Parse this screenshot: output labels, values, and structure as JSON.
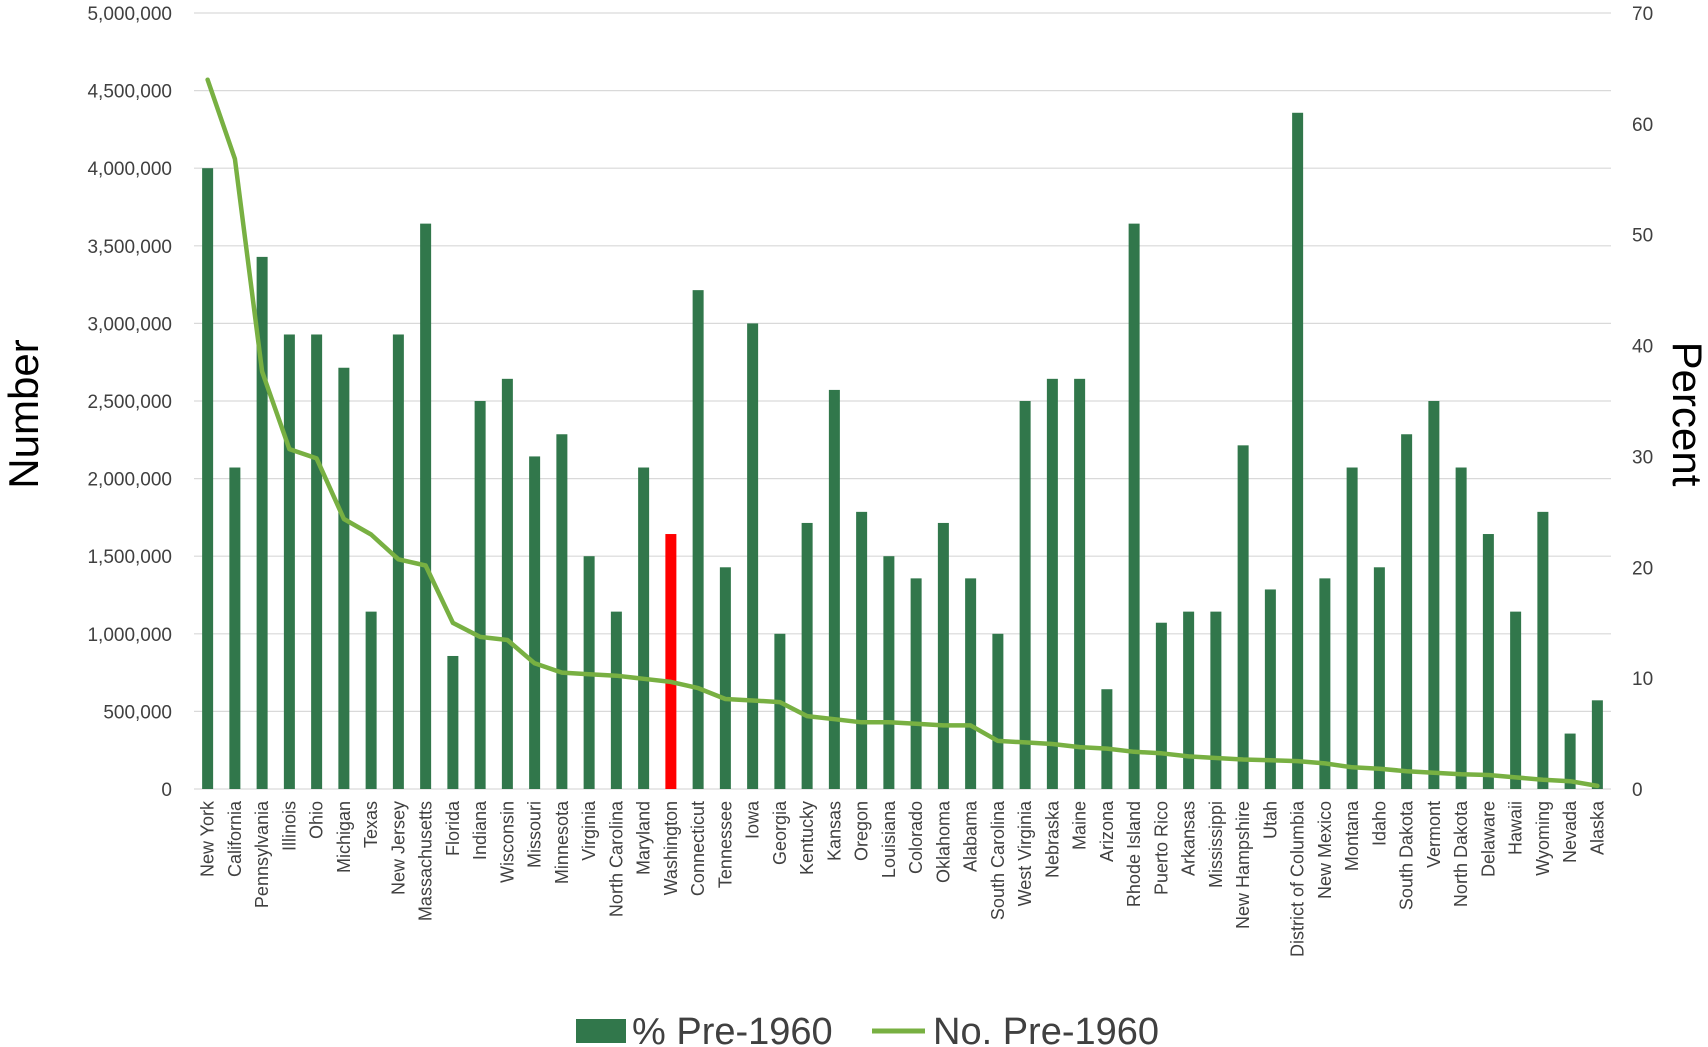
{
  "chart_data": {
    "type": "bar",
    "ylabel": "Number",
    "y2label": "Percent",
    "ylim": [
      0,
      5000000
    ],
    "y2lim": [
      0,
      70
    ],
    "yticks": [
      "0",
      "500,000",
      "1,000,000",
      "1,500,000",
      "2,000,000",
      "2,500,000",
      "3,000,000",
      "3,500,000",
      "4,000,000",
      "4,500,000",
      "5,000,000"
    ],
    "y2ticks": [
      "0",
      "10",
      "20",
      "30",
      "40",
      "50",
      "60",
      "70"
    ],
    "grid": true,
    "legend_position": "bottom",
    "categories": [
      "New York",
      "California",
      "Pennsylvania",
      "Illinois",
      "Ohio",
      "Michigan",
      "Texas",
      "New Jersey",
      "Massachusetts",
      "Florida",
      "Indiana",
      "Wisconsin",
      "Missouri",
      "Minnesota",
      "Virginia",
      "North Carolina",
      "Maryland",
      "Washington",
      "Connecticut",
      "Tennessee",
      "Iowa",
      "Georgia",
      "Kentucky",
      "Kansas",
      "Oregon",
      "Louisiana",
      "Colorado",
      "Oklahoma",
      "Alabama",
      "South Carolina",
      "West Virginia",
      "Nebraska",
      "Maine",
      "Arizona",
      "Rhode Island",
      "Puerto Rico",
      "Arkansas",
      "Mississippi",
      "New Hampshire",
      "Utah",
      "District of Columbia",
      "New Mexico",
      "Montana",
      "Idaho",
      "South Dakota",
      "Vermont",
      "North Dakota",
      "Delaware",
      "Hawaii",
      "Wyoming",
      "Nevada",
      "Alaska"
    ],
    "highlight_category": "Washington",
    "series": [
      {
        "name": "% Pre-1960",
        "kind": "bar",
        "axis": "right",
        "color": "#31774b",
        "highlight_color": "#ff0000",
        "values": [
          56,
          29,
          48,
          41,
          41,
          38,
          16,
          41,
          51,
          12,
          35,
          37,
          30,
          32,
          21,
          16,
          29,
          23,
          45,
          20,
          42,
          14,
          24,
          36,
          25,
          21,
          19,
          24,
          19,
          14,
          35,
          37,
          37,
          9,
          51,
          15,
          16,
          16,
          31,
          18,
          61,
          19,
          29,
          20,
          32,
          35,
          29,
          23,
          16,
          25,
          5,
          8
        ]
      },
      {
        "name": "No. Pre-1960",
        "kind": "line",
        "axis": "left",
        "color": "#78b042",
        "values": [
          4570000,
          4060000,
          2690000,
          2190000,
          2130000,
          1740000,
          1640000,
          1480000,
          1440000,
          1070000,
          980000,
          960000,
          810000,
          750000,
          740000,
          730000,
          710000,
          690000,
          650000,
          580000,
          570000,
          560000,
          470000,
          450000,
          430000,
          430000,
          420000,
          410000,
          410000,
          310000,
          300000,
          290000,
          270000,
          260000,
          240000,
          230000,
          210000,
          200000,
          190000,
          185000,
          180000,
          165000,
          140000,
          130000,
          115000,
          105000,
          95000,
          90000,
          75000,
          60000,
          50000,
          20000
        ]
      }
    ]
  }
}
